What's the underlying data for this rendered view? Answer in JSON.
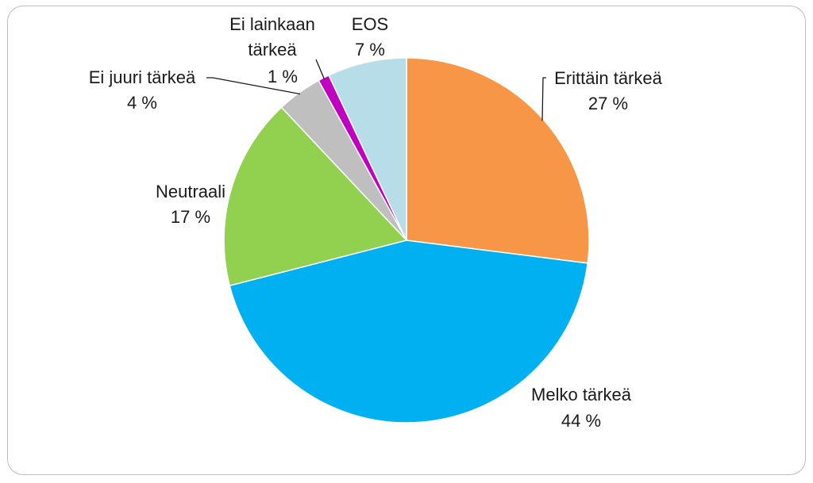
{
  "chart_data": {
    "type": "pie",
    "title": "",
    "slices": [
      {
        "label": "Erittäin tärkeä",
        "value": 27,
        "value_label": "27 %",
        "color": "#F79646"
      },
      {
        "label": "Melko tärkeä",
        "value": 44,
        "value_label": "44 %",
        "color": "#00B0F0"
      },
      {
        "label": "Neutraali",
        "value": 17,
        "value_label": "17 %",
        "color": "#92D050"
      },
      {
        "label": "Ei juuri tärkeä",
        "value": 4,
        "value_label": "4 %",
        "color": "#BFBFBF"
      },
      {
        "label": "Ei lainkaan tärkeä",
        "value": 1,
        "value_label": "1 %",
        "color": "#C000C0"
      },
      {
        "label": "EOS",
        "value": 7,
        "value_label": "7 %",
        "color": "#B7DDE8"
      }
    ],
    "start": "12 o'clock",
    "direction": "clockwise",
    "legend": "none"
  }
}
